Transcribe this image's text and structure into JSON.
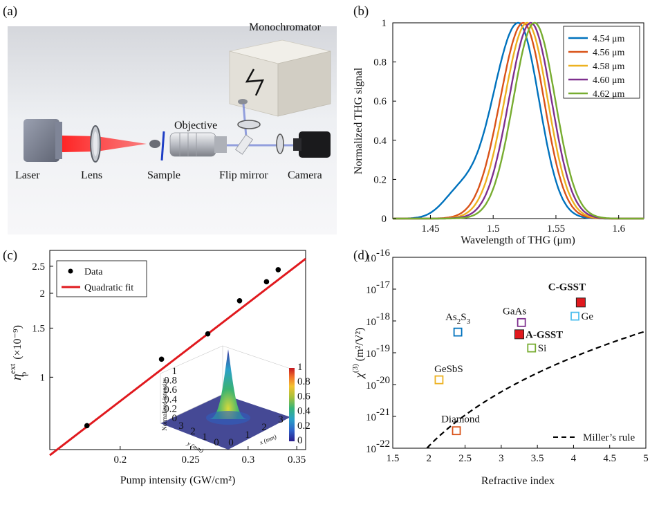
{
  "panels": {
    "a": {
      "label": "(a)",
      "components": [
        "Laser",
        "Lens",
        "Sample",
        "Objective",
        "Flip mirror",
        "Camera",
        "Monochromator"
      ]
    },
    "b": {
      "label": "(b)"
    },
    "c": {
      "label": "(c)"
    },
    "d": {
      "label": "(d)"
    }
  },
  "chart_data": [
    {
      "panel": "b",
      "type": "line",
      "xlabel": "Wavelength of THG (μm)",
      "ylabel": "Normalized THG signal",
      "xlim": [
        1.42,
        1.62
      ],
      "ylim": [
        0,
        1
      ],
      "xticks": [
        "1.45",
        "1.5",
        "1.55",
        "1.6"
      ],
      "yticks": [
        "0",
        "0.2",
        "0.4",
        "0.6",
        "0.8",
        "1"
      ],
      "legend_position": "top-right",
      "series": [
        {
          "name": "4.54 μm",
          "color": "#0072BD",
          "peak": 1.52,
          "width_left": 0.0205,
          "width_right": 0.0165,
          "shoulder": true
        },
        {
          "name": "4.56 μm",
          "color": "#D95319",
          "peak": 1.524,
          "width_left": 0.0185,
          "width_right": 0.0165
        },
        {
          "name": "4.58 μm",
          "color": "#EDB120",
          "peak": 1.527,
          "width_left": 0.018,
          "width_right": 0.0165
        },
        {
          "name": "4.60 μm",
          "color": "#7E2F8E",
          "peak": 1.53,
          "width_left": 0.0175,
          "width_right": 0.0165
        },
        {
          "name": "4.62 μm",
          "color": "#77AC30",
          "peak": 1.533,
          "width_left": 0.017,
          "width_right": 0.0165
        }
      ]
    },
    {
      "panel": "c",
      "type": "scatter",
      "xlabel": "Pump intensity (GW/cm²)",
      "ylabel": "η",
      "ylabel_sup": "ext",
      "ylabel_sub": "p",
      "ylabel_unit": "(×10⁻⁹)",
      "xscale": "log",
      "yscale": "log",
      "xlim": [
        0.16,
        0.36
      ],
      "ylim": [
        0.55,
        2.85
      ],
      "xticks": [
        "0.2",
        "0.25",
        "0.3",
        "0.35"
      ],
      "yticks": [
        "1",
        "1.5",
        "2",
        "2.5"
      ],
      "legend_position": "top-left",
      "series": [
        {
          "name": "Data",
          "color": "#000000",
          "x": [
            0.18,
            0.228,
            0.264,
            0.292,
            0.318,
            0.33
          ],
          "y": [
            0.67,
            1.16,
            1.43,
            1.88,
            2.2,
            2.43
          ]
        },
        {
          "name": "Quadratic fit",
          "color": "#E0191E",
          "x": [
            0.16,
            0.36
          ],
          "y": [
            0.525,
            2.66
          ]
        }
      ],
      "inset": {
        "type": "surface",
        "zlabel": "Normalized intensity",
        "xlabel": "x (mm)",
        "ylabel": "y (mm)",
        "zticks": [
          "0",
          "0.2",
          "0.4",
          "0.6",
          "0.8",
          "1"
        ],
        "xticks": [
          "0",
          "1",
          "2",
          "3"
        ],
        "yticks": [
          "0",
          "1",
          "2",
          "3"
        ],
        "colorbar_ticks": [
          "0",
          "0.2",
          "0.4",
          "0.6",
          "0.8",
          "1"
        ]
      }
    },
    {
      "panel": "d",
      "type": "scatter",
      "xlabel": "Refractive index",
      "ylabel": "χ",
      "ylabel_sup": "(3)",
      "ylabel_unit": "(m²/V²)",
      "yscale": "log",
      "xlim": [
        1.5,
        5
      ],
      "ylim_exp": [
        -22,
        -16
      ],
      "xticks": [
        "1.5",
        "2",
        "2.5",
        "3",
        "3.5",
        "4",
        "4.5",
        "5"
      ],
      "yticks": [
        "10",
        "10",
        "10",
        "10",
        "10",
        "10",
        "10"
      ],
      "ytick_exponents": [
        "-22",
        "-21",
        "-20",
        "-19",
        "-18",
        "-17",
        "-16"
      ],
      "legend_position": "bottom-right",
      "points": [
        {
          "label": "As",
          "label_parts": [
            "As",
            "2",
            "S",
            "3"
          ],
          "x": 2.4,
          "log10y": -18.35,
          "color": "#0072BD",
          "filled": false
        },
        {
          "label": "GaAs",
          "x": 3.28,
          "log10y": -18.05,
          "color": "#7E2F8E",
          "filled": false
        },
        {
          "label": "A-GSST",
          "x": 3.25,
          "log10y": -18.42,
          "color": "#E0191E",
          "filled": true,
          "bold": true
        },
        {
          "label": "C-GSST",
          "x": 4.1,
          "log10y": -17.42,
          "color": "#E0191E",
          "filled": true,
          "bold": true
        },
        {
          "label": "Ge",
          "x": 4.02,
          "log10y": -17.85,
          "color": "#4DBEEE",
          "filled": false
        },
        {
          "label": "Si",
          "x": 3.42,
          "log10y": -18.85,
          "color": "#77AC30",
          "filled": false
        },
        {
          "label": "GeSbS",
          "x": 2.14,
          "log10y": -19.85,
          "color": "#EDB120",
          "filled": false
        },
        {
          "label": "Diamond",
          "x": 2.38,
          "log10y": -21.45,
          "color": "#D95319",
          "filled": false
        }
      ],
      "miller": {
        "name": "Miller’s rule",
        "coef": 0.00036
      }
    }
  ]
}
